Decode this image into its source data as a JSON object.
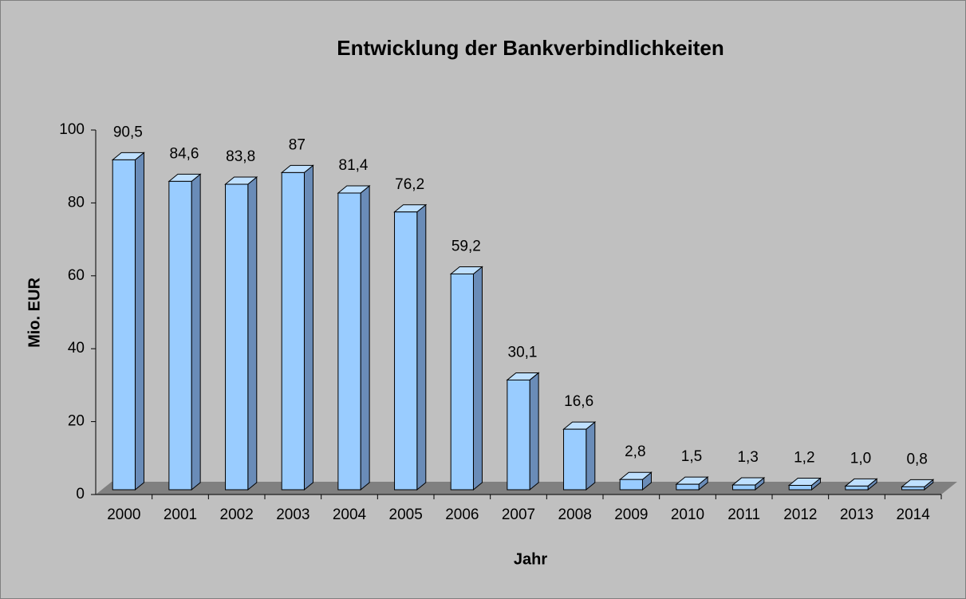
{
  "chart_data": {
    "type": "bar3d",
    "title": "Entwicklung der Bankverbindlichkeiten",
    "x_label": "Jahr",
    "y_label": "Mio. EUR",
    "categories": [
      "2000",
      "2001",
      "2002",
      "2003",
      "2004",
      "2005",
      "2006",
      "2007",
      "2008",
      "2009",
      "2010",
      "2011",
      "2012",
      "2013",
      "2014"
    ],
    "values": [
      90.5,
      84.6,
      83.8,
      87,
      81.4,
      76.2,
      59.2,
      30.1,
      16.6,
      2.8,
      1.5,
      1.3,
      1.2,
      1.0,
      0.8
    ],
    "value_labels": [
      "90,5",
      "84,6",
      "83,8",
      "87",
      "81,4",
      "76,2",
      "59,2",
      "30,1",
      "16,6",
      "2,8",
      "1,5",
      "1,3",
      "1,2",
      "1,0",
      "0,8"
    ],
    "color": "#99ccff",
    "ylim": [
      0,
      100
    ],
    "yticks": [
      0,
      20,
      40,
      60,
      80,
      100
    ]
  }
}
